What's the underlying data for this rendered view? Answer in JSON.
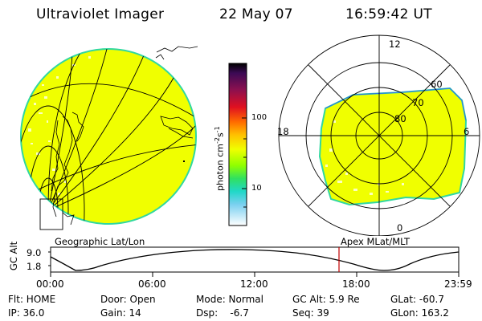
{
  "header": {
    "title": "Ultraviolet Imager",
    "date": "22 May 07",
    "time": "16:59:42 UT"
  },
  "colors": {
    "fill": "#f0ff00",
    "edge": "#30d8a0",
    "blue_edge": "#3070e8",
    "marker": "#c00000"
  },
  "colorbar": {
    "label_main": "photon cm",
    "label_exp1": "-2",
    "label_mid": "s",
    "label_exp2": "-1",
    "ticks": [
      "100",
      "10"
    ]
  },
  "left_panel": {
    "label": "Geographic Lat/Lon"
  },
  "right_panel": {
    "label": "Apex MLat/MLT",
    "mlt_labels": [
      "12",
      "18",
      "6",
      "0"
    ],
    "lat_labels": [
      "60",
      "70",
      "80"
    ]
  },
  "altitude_plot": {
    "ylabel": "GC Alt",
    "y_ticks": [
      "9.0",
      "1.8"
    ],
    "x_ticks": [
      "00:00",
      "06:00",
      "12:00",
      "18:00",
      "23:59"
    ]
  },
  "footer": {
    "row1": [
      "Flt: HOME",
      "Door: Open",
      "Mode: Normal",
      "GC Alt: 5.9 Re",
      "GLat: -60.7"
    ],
    "row2": [
      "IP: 36.0",
      "Gain: 14",
      "Dsp:    -6.7",
      "Seq: 39",
      "GLon: 163.2"
    ]
  }
}
